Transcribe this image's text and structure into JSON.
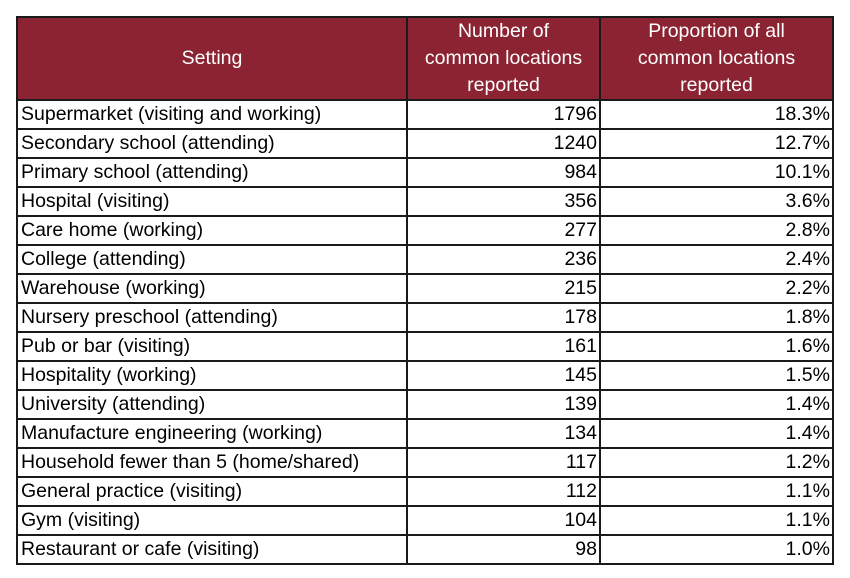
{
  "table": {
    "header_bg": "#8b2332",
    "headers": {
      "setting": "Setting",
      "count": [
        "Number of",
        "common locations",
        "reported"
      ],
      "proportion": [
        "Proportion of all",
        "common locations",
        "reported"
      ]
    },
    "rows": [
      {
        "setting": "Supermarket (visiting and working)",
        "count": "1796",
        "proportion": "18.3%"
      },
      {
        "setting": "Secondary school (attending)",
        "count": "1240",
        "proportion": "12.7%"
      },
      {
        "setting": "Primary school (attending)",
        "count": "984",
        "proportion": "10.1%"
      },
      {
        "setting": "Hospital (visiting)",
        "count": "356",
        "proportion": "3.6%"
      },
      {
        "setting": "Care home (working)",
        "count": "277",
        "proportion": "2.8%"
      },
      {
        "setting": "College (attending)",
        "count": "236",
        "proportion": "2.4%"
      },
      {
        "setting": "Warehouse (working)",
        "count": "215",
        "proportion": "2.2%"
      },
      {
        "setting": "Nursery preschool (attending)",
        "count": "178",
        "proportion": "1.8%"
      },
      {
        "setting": "Pub or bar (visiting)",
        "count": "161",
        "proportion": "1.6%"
      },
      {
        "setting": "Hospitality (working)",
        "count": "145",
        "proportion": "1.5%"
      },
      {
        "setting": "University (attending)",
        "count": "139",
        "proportion": "1.4%"
      },
      {
        "setting": "Manufacture engineering (working)",
        "count": "134",
        "proportion": "1.4%"
      },
      {
        "setting": "Household fewer than 5 (home/shared)",
        "count": "117",
        "proportion": "1.2%"
      },
      {
        "setting": "General practice (visiting)",
        "count": "112",
        "proportion": "1.1%"
      },
      {
        "setting": "Gym (visiting)",
        "count": "104",
        "proportion": "1.1%"
      },
      {
        "setting": "Restaurant or cafe (visiting)",
        "count": "98",
        "proportion": "1.0%"
      }
    ]
  }
}
